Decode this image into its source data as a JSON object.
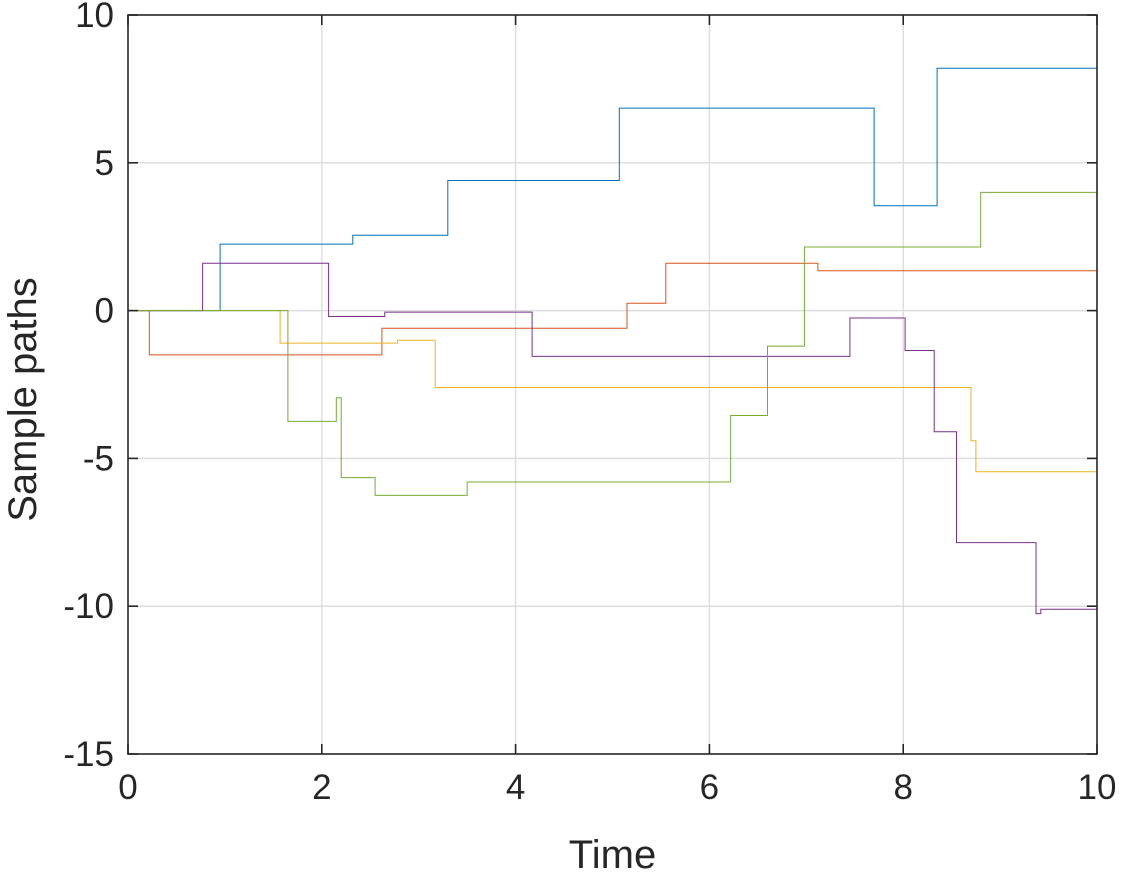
{
  "chart_data": {
    "type": "line",
    "step": "post",
    "title": "",
    "xlabel": "Time",
    "ylabel": "Sample paths",
    "xlim": [
      0,
      10
    ],
    "ylim": [
      -15,
      10
    ],
    "xticks": [
      0,
      2,
      4,
      6,
      8,
      10
    ],
    "yticks": [
      -15,
      -10,
      -5,
      0,
      5,
      10
    ],
    "xtick_labels": [
      "0",
      "2",
      "4",
      "6",
      "8",
      "10"
    ],
    "ytick_labels": [
      "-15",
      "-10",
      "-5",
      "0",
      "5",
      "10"
    ],
    "grid": true,
    "legend": "none",
    "series": [
      {
        "color": "#0072BD",
        "x": [
          0,
          0.95,
          2.32,
          3.3,
          5.07,
          7.7,
          8.35,
          10
        ],
        "y": [
          0,
          2.25,
          2.55,
          4.4,
          6.85,
          3.55,
          8.2,
          8.2
        ]
      },
      {
        "color": "#D95319",
        "x": [
          0,
          0.22,
          2.62,
          5.15,
          5.55,
          7.12,
          10
        ],
        "y": [
          0,
          -1.5,
          -0.6,
          0.25,
          1.6,
          1.35,
          1.35
        ]
      },
      {
        "color": "#EDB120",
        "x": [
          0,
          1.57,
          2.78,
          3.17,
          8.7,
          8.75,
          10
        ],
        "y": [
          0,
          -1.1,
          -1.0,
          -2.6,
          -4.4,
          -5.45,
          -5.45
        ]
      },
      {
        "color": "#7E2F8E",
        "x": [
          0,
          0.77,
          2.07,
          2.65,
          4.17,
          7.45,
          8.02,
          8.32,
          8.55,
          9.37,
          9.42,
          10
        ],
        "y": [
          0,
          1.6,
          -0.2,
          -0.05,
          -1.55,
          -0.25,
          -1.35,
          -4.1,
          -7.85,
          -10.25,
          -10.1,
          -10.1
        ]
      },
      {
        "color": "#77AC30",
        "x": [
          0,
          1.65,
          2.15,
          2.2,
          2.55,
          3.5,
          6.22,
          6.6,
          6.98,
          8.8,
          10
        ],
        "y": [
          0,
          -3.75,
          -2.95,
          -5.65,
          -6.25,
          -5.8,
          -3.55,
          -1.2,
          2.15,
          4.0,
          4.0
        ]
      }
    ]
  }
}
